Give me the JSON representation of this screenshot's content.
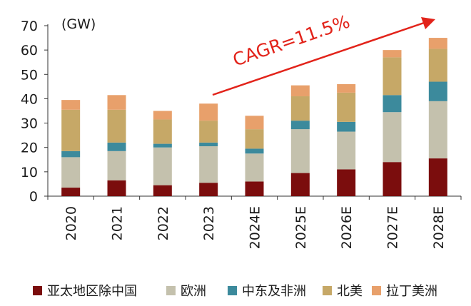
{
  "chart_data": {
    "type": "bar",
    "stacked": true,
    "unit_label": "(GW)",
    "categories": [
      "2020",
      "2021",
      "2022",
      "2023",
      "2024E",
      "2025E",
      "2026E",
      "2027E",
      "2028E"
    ],
    "ylim": [
      0,
      70
    ],
    "yticks": [
      "0",
      "10",
      "20",
      "30",
      "40",
      "50",
      "60",
      "70"
    ],
    "series": [
      {
        "name": "亚太地区除中国",
        "color": "#7b0d0d",
        "values": [
          3.5,
          6.5,
          4.5,
          5.5,
          6.0,
          9.5,
          11.0,
          14.0,
          15.5
        ]
      },
      {
        "name": "欧洲",
        "color": "#c4c1ad",
        "values": [
          12.5,
          12.0,
          15.5,
          15.0,
          11.5,
          18.0,
          15.5,
          20.5,
          23.5
        ]
      },
      {
        "name": "中东及非洲",
        "color": "#3c8a9c",
        "values": [
          2.5,
          3.5,
          1.5,
          1.5,
          2.0,
          3.5,
          4.0,
          7.0,
          8.0
        ]
      },
      {
        "name": "北美",
        "color": "#c6a867",
        "values": [
          17.0,
          13.5,
          10.0,
          9.0,
          8.0,
          10.0,
          12.0,
          15.5,
          13.5
        ]
      },
      {
        "name": "拉丁美洲",
        "color": "#e8a06b",
        "values": [
          4.0,
          6.0,
          3.5,
          7.0,
          5.5,
          4.5,
          3.5,
          3.0,
          4.5
        ]
      }
    ],
    "annotation": "CAGR=11.5%"
  }
}
